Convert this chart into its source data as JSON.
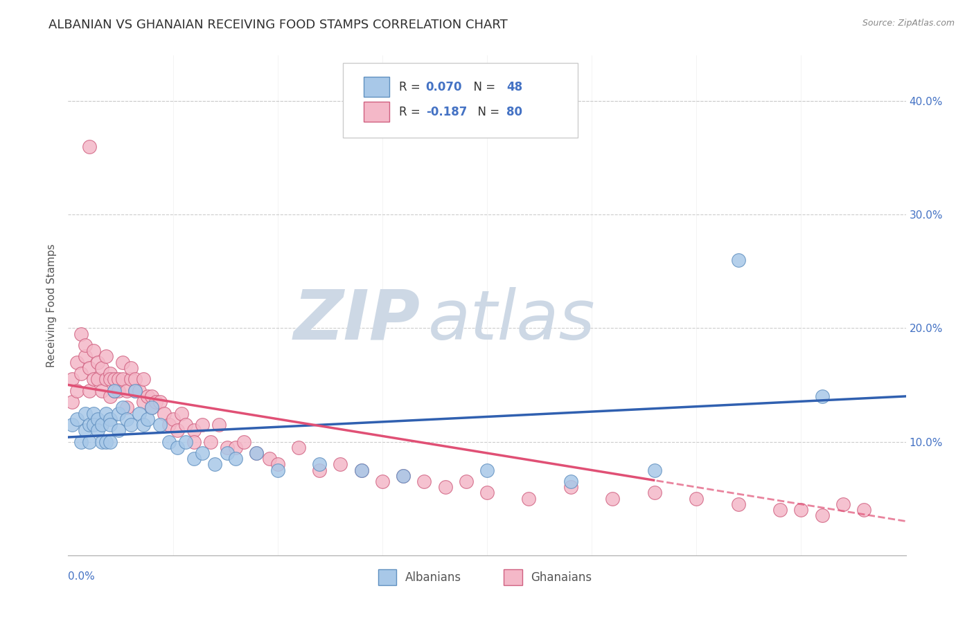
{
  "title": "ALBANIAN VS GHANAIAN RECEIVING FOOD STAMPS CORRELATION CHART",
  "source": "Source: ZipAtlas.com",
  "ylabel": "Receiving Food Stamps",
  "yticks": [
    0.1,
    0.2,
    0.3,
    0.4
  ],
  "ytick_labels": [
    "10.0%",
    "20.0%",
    "30.0%",
    "40.0%"
  ],
  "xlim": [
    0.0,
    0.2
  ],
  "ylim": [
    0.0,
    0.44
  ],
  "albanian_R": 0.07,
  "albanian_N": 48,
  "ghanaian_R": -0.187,
  "ghanaian_N": 80,
  "albanian_color": "#a8c8e8",
  "ghanaian_color": "#f4b8c8",
  "albanian_edge_color": "#6090c0",
  "ghanaian_edge_color": "#d06080",
  "albanian_line_color": "#3060b0",
  "ghanaian_line_color": "#e05075",
  "background_color": "#ffffff",
  "title_color": "#303030",
  "watermark_zip_color": "#c8d8e8",
  "watermark_atlas_color": "#c8d8e8",
  "albanian_x": [
    0.001,
    0.002,
    0.003,
    0.004,
    0.004,
    0.005,
    0.005,
    0.006,
    0.006,
    0.007,
    0.007,
    0.008,
    0.008,
    0.009,
    0.009,
    0.01,
    0.01,
    0.01,
    0.011,
    0.012,
    0.012,
    0.013,
    0.014,
    0.015,
    0.016,
    0.017,
    0.018,
    0.019,
    0.02,
    0.022,
    0.024,
    0.026,
    0.028,
    0.03,
    0.032,
    0.035,
    0.038,
    0.04,
    0.045,
    0.05,
    0.06,
    0.07,
    0.08,
    0.1,
    0.12,
    0.14,
    0.16,
    0.18
  ],
  "albanian_y": [
    0.115,
    0.12,
    0.1,
    0.125,
    0.11,
    0.115,
    0.1,
    0.125,
    0.115,
    0.12,
    0.11,
    0.115,
    0.1,
    0.125,
    0.1,
    0.12,
    0.115,
    0.1,
    0.145,
    0.125,
    0.11,
    0.13,
    0.12,
    0.115,
    0.145,
    0.125,
    0.115,
    0.12,
    0.13,
    0.115,
    0.1,
    0.095,
    0.1,
    0.085,
    0.09,
    0.08,
    0.09,
    0.085,
    0.09,
    0.075,
    0.08,
    0.075,
    0.07,
    0.075,
    0.065,
    0.075,
    0.26,
    0.14
  ],
  "ghanaian_x": [
    0.001,
    0.001,
    0.002,
    0.002,
    0.003,
    0.003,
    0.004,
    0.004,
    0.005,
    0.005,
    0.005,
    0.006,
    0.006,
    0.007,
    0.007,
    0.008,
    0.008,
    0.009,
    0.009,
    0.01,
    0.01,
    0.01,
    0.011,
    0.011,
    0.012,
    0.012,
    0.013,
    0.013,
    0.014,
    0.014,
    0.015,
    0.015,
    0.016,
    0.016,
    0.017,
    0.018,
    0.018,
    0.019,
    0.02,
    0.02,
    0.021,
    0.022,
    0.023,
    0.024,
    0.025,
    0.026,
    0.027,
    0.028,
    0.03,
    0.03,
    0.032,
    0.034,
    0.036,
    0.038,
    0.04,
    0.042,
    0.045,
    0.048,
    0.05,
    0.055,
    0.06,
    0.065,
    0.07,
    0.075,
    0.08,
    0.085,
    0.09,
    0.095,
    0.1,
    0.11,
    0.12,
    0.13,
    0.14,
    0.15,
    0.16,
    0.17,
    0.175,
    0.18,
    0.185,
    0.19
  ],
  "ghanaian_y": [
    0.135,
    0.155,
    0.145,
    0.17,
    0.16,
    0.195,
    0.175,
    0.185,
    0.145,
    0.36,
    0.165,
    0.155,
    0.18,
    0.155,
    0.17,
    0.145,
    0.165,
    0.155,
    0.175,
    0.16,
    0.155,
    0.14,
    0.145,
    0.155,
    0.145,
    0.155,
    0.17,
    0.155,
    0.13,
    0.145,
    0.155,
    0.165,
    0.145,
    0.155,
    0.145,
    0.155,
    0.135,
    0.14,
    0.13,
    0.14,
    0.135,
    0.135,
    0.125,
    0.115,
    0.12,
    0.11,
    0.125,
    0.115,
    0.11,
    0.1,
    0.115,
    0.1,
    0.115,
    0.095,
    0.095,
    0.1,
    0.09,
    0.085,
    0.08,
    0.095,
    0.075,
    0.08,
    0.075,
    0.065,
    0.07,
    0.065,
    0.06,
    0.065,
    0.055,
    0.05,
    0.06,
    0.05,
    0.055,
    0.05,
    0.045,
    0.04,
    0.04,
    0.035,
    0.045,
    0.04
  ],
  "trend_dash_start": 0.14,
  "title_fontsize": 13,
  "tick_fontsize": 11,
  "legend_fontsize": 12
}
